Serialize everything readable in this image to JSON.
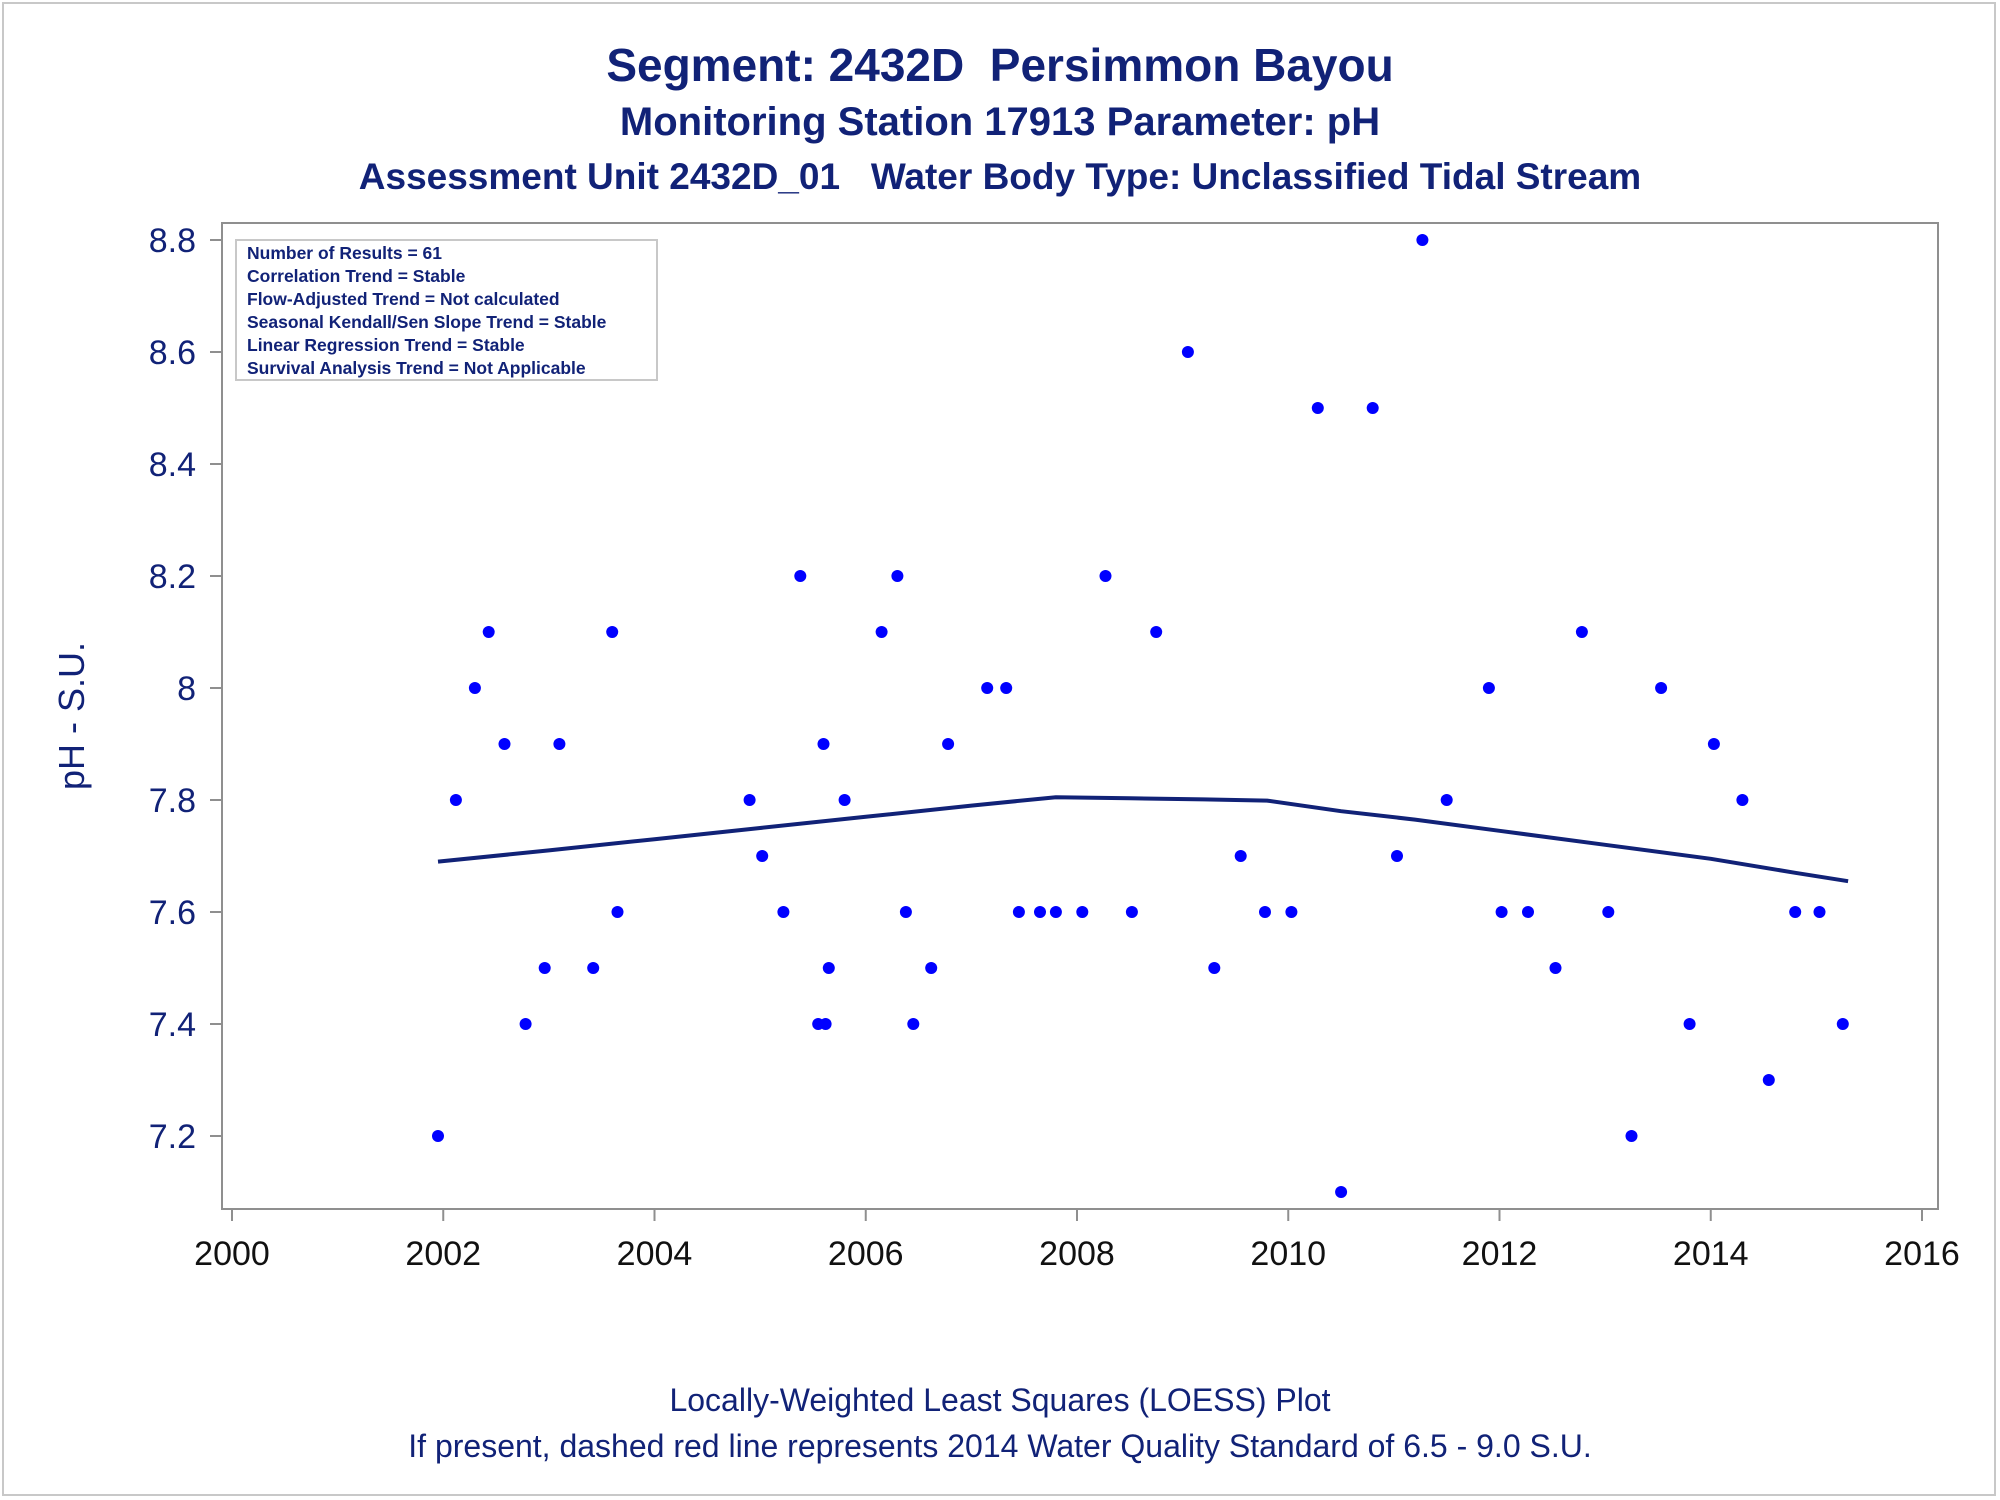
{
  "colors": {
    "title": "#112277",
    "points": "#0000ff",
    "loess": "#112277",
    "frame": "#8f8f8f"
  },
  "titles": {
    "line1": "Segment: 2432D  Persimmon Bayou",
    "line2": "Monitoring Station 17913 Parameter: pH",
    "line3": "Assessment Unit 2432D_01   Water Body Type: Unclassified Tidal Stream"
  },
  "footnotes": {
    "line1": "Locally-Weighted Least Squares (LOESS) Plot",
    "line2": "If present, dashed red line represents 2014 Water Quality Standard of 6.5 - 9.0 S.U."
  },
  "inset": [
    "Number of Results = 61",
    "Correlation Trend = Stable",
    "Flow-Adjusted Trend = Not calculated",
    "Seasonal Kendall/Sen Slope Trend = Stable",
    "Linear Regression Trend = Stable",
    "Survival Analysis Trend = Not Applicable"
  ],
  "chart_data": {
    "type": "scatter",
    "ylabel": "pH - S.U.",
    "xlabel": "",
    "xlim": [
      2000,
      2016
    ],
    "ylim": [
      7.09,
      8.82
    ],
    "x_ticks": [
      2000,
      2002,
      2004,
      2006,
      2008,
      2010,
      2012,
      2014,
      2016
    ],
    "y_ticks": [
      7.2,
      7.4,
      7.6,
      7.8,
      8,
      8.2,
      8.4,
      8.6,
      8.8
    ],
    "y_tick_labels": [
      "7.2",
      "7.4",
      "7.6",
      "7.8",
      "8",
      "8.2",
      "8.4",
      "8.6",
      "8.8"
    ],
    "legend": "none",
    "grid": false,
    "series": [
      {
        "kind": "points",
        "x": [
          2001.95,
          2002.12,
          2002.3,
          2002.43,
          2002.58,
          2002.78,
          2002.96,
          2003.1,
          2003.42,
          2003.6,
          2003.65,
          2004.9,
          2005.02,
          2005.22,
          2005.38,
          2005.55,
          2005.6,
          2005.62,
          2005.65,
          2005.8,
          2006.15,
          2006.3,
          2006.38,
          2006.45,
          2006.62,
          2006.78,
          2007.15,
          2007.33,
          2007.45,
          2007.65,
          2007.8,
          2008.05,
          2008.27,
          2008.52,
          2008.75,
          2009.05,
          2009.3,
          2009.55,
          2009.78,
          2010.03,
          2010.28,
          2010.5,
          2010.8,
          2011.03,
          2011.27,
          2011.5,
          2011.9,
          2012.02,
          2012.27,
          2012.53,
          2012.78,
          2013.03,
          2013.25,
          2013.53,
          2013.8,
          2014.03,
          2014.3,
          2014.55,
          2014.8,
          2015.03,
          2015.25
        ],
        "y": [
          7.2,
          7.8,
          8.0,
          8.1,
          7.9,
          7.4,
          7.5,
          7.9,
          7.5,
          8.1,
          7.6,
          7.8,
          7.7,
          7.6,
          8.2,
          7.4,
          7.9,
          7.4,
          7.5,
          7.8,
          8.1,
          8.2,
          7.6,
          7.4,
          7.5,
          7.9,
          8.0,
          8.0,
          7.6,
          7.6,
          7.6,
          7.6,
          8.2,
          7.6,
          8.1,
          8.6,
          7.5,
          7.7,
          7.6,
          7.6,
          8.5,
          7.1,
          8.5,
          7.7,
          8.8,
          7.8,
          8.0,
          7.6,
          7.6,
          7.5,
          8.1,
          7.6,
          7.2,
          8.0,
          7.4,
          7.9,
          7.8,
          7.3,
          7.6,
          7.6,
          7.4
        ]
      },
      {
        "kind": "loess",
        "x": [
          2001.95,
          2003.0,
          2004.0,
          2005.0,
          2006.0,
          2007.0,
          2007.8,
          2008.5,
          2009.2,
          2009.8,
          2010.5,
          2011.2,
          2012.0,
          2013.0,
          2014.0,
          2014.8,
          2015.3
        ],
        "y": [
          7.69,
          7.71,
          7.73,
          7.75,
          7.77,
          7.79,
          7.805,
          7.803,
          7.801,
          7.799,
          7.78,
          7.765,
          7.745,
          7.72,
          7.695,
          7.67,
          7.655
        ]
      }
    ]
  }
}
